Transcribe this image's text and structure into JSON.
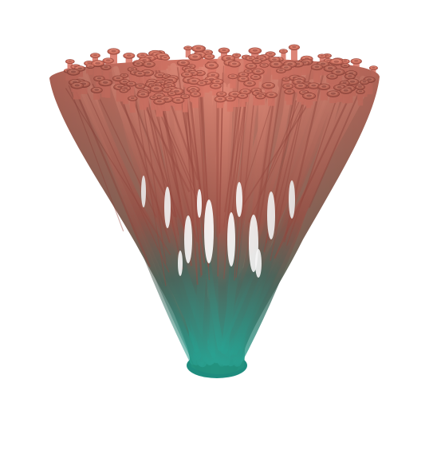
{
  "scene": {
    "subject": "branching-coral-structure",
    "palette": {
      "background": "#ffffff",
      "top": "#d87868",
      "top_highlight": "#ef9c8a",
      "top_shadow": "#9c4c42",
      "middle": "#8a6a5c",
      "bottom": "#1e8a7c",
      "bottom_highlight": "#4cc2b0",
      "bottom_shadow": "#0e4f48"
    },
    "branch_tip_count": 190,
    "strand_count": 90
  }
}
